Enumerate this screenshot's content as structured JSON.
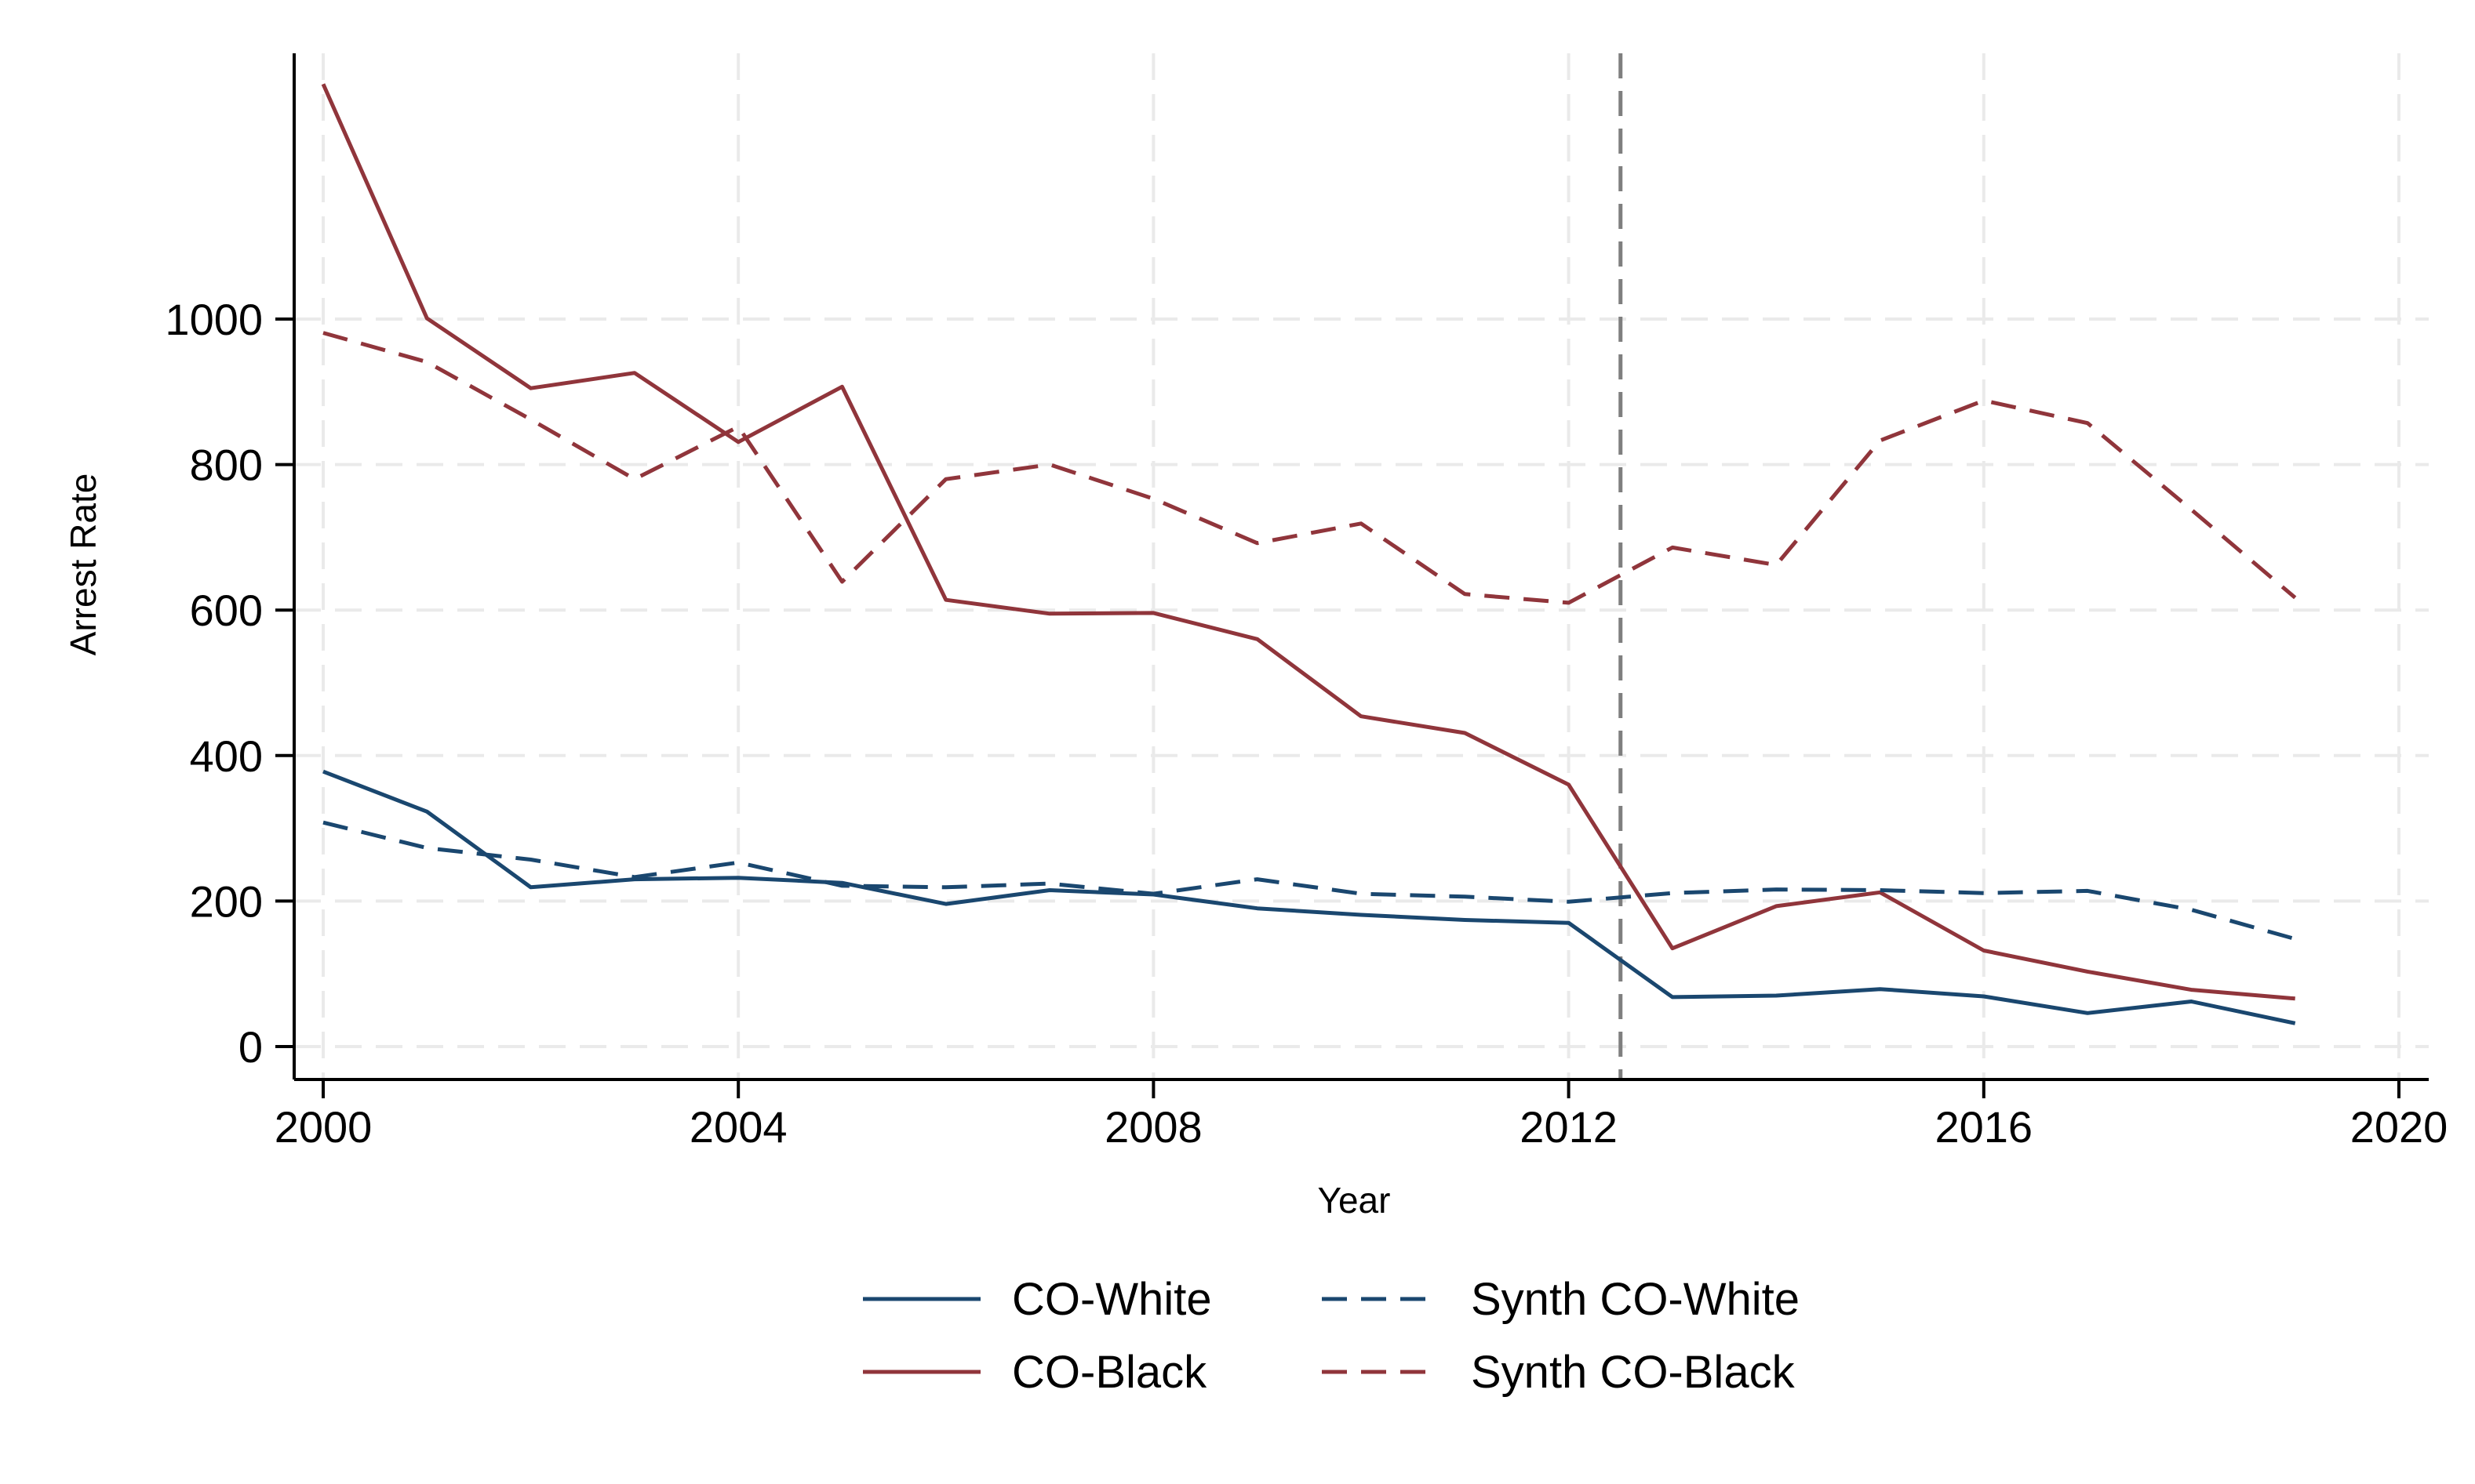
{
  "chart_data": {
    "type": "line",
    "title": "",
    "xlabel": "Year",
    "ylabel": "Arrest Rate",
    "xlim": [
      2000,
      2020
    ],
    "ylim": [
      0,
      1300
    ],
    "x_ticks": [
      2000,
      2004,
      2008,
      2012,
      2016,
      2020
    ],
    "y_ticks": [
      0,
      200,
      400,
      600,
      800,
      1000
    ],
    "grid": true,
    "treatment_line_x": 2012.5,
    "x": [
      2000,
      2001,
      2002,
      2003,
      2004,
      2005,
      2006,
      2007,
      2008,
      2009,
      2010,
      2011,
      2012,
      2013,
      2014,
      2015,
      2016,
      2017,
      2018,
      2019
    ],
    "legend_position": "bottom",
    "series": [
      {
        "name": "CO-White",
        "color": "#1a476f",
        "style": "solid",
        "values": [
          378,
          323,
          219,
          230,
          232,
          225,
          196,
          215,
          209,
          190,
          181,
          174,
          170,
          68,
          70,
          79,
          69,
          46,
          62,
          32
        ]
      },
      {
        "name": "CO-Black",
        "color": "#90353b",
        "style": "solid",
        "values": [
          1323,
          1001,
          905,
          926,
          831,
          907,
          614,
          595,
          596,
          560,
          454,
          431,
          360,
          135,
          193,
          212,
          132,
          103,
          78,
          66
        ]
      },
      {
        "name": "Synth CO-White",
        "color": "#1a476f",
        "style": "dashed",
        "values": [
          308,
          273,
          257,
          233,
          253,
          221,
          219,
          224,
          210,
          230,
          210,
          206,
          199,
          211,
          216,
          215,
          211,
          214,
          188,
          148
        ]
      },
      {
        "name": "Synth CO-Black",
        "color": "#90353b",
        "style": "dashed",
        "values": [
          981,
          941,
          862,
          780,
          852,
          639,
          780,
          800,
          753,
          692,
          719,
          622,
          610,
          686,
          662,
          833,
          888,
          857,
          738,
          617
        ]
      }
    ]
  }
}
